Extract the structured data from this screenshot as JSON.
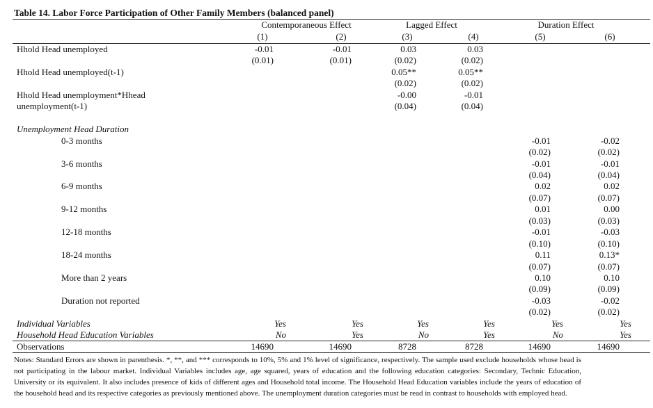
{
  "title": "Table 14. Labor Force Participation of Other Family Members (balanced panel)",
  "headers": {
    "groups": [
      "Contemporaneous Effect",
      "Lagged Effect",
      "Duration Effect"
    ],
    "columns": [
      "(1)",
      "(2)",
      "(3)",
      "(4)",
      "(5)",
      "(6)"
    ]
  },
  "rows": [
    {
      "label": "Hhold Head unemployed",
      "cells": [
        "-0.01",
        "-0.01",
        "0.03",
        "0.03",
        null,
        null
      ]
    },
    {
      "cells": [
        "(0.01)",
        "(0.01)",
        "(0.02)",
        "(0.02)",
        null,
        null
      ]
    },
    {
      "label": "Hhold Head unemployed(t-1)",
      "cells": [
        null,
        null,
        "0.05**",
        "0.05**",
        null,
        null
      ]
    },
    {
      "cells": [
        null,
        null,
        "(0.02)",
        "(0.02)",
        null,
        null
      ]
    },
    {
      "label": "Hhold Head unemployment*Hhead",
      "cells": [
        null,
        null,
        "-0.00",
        "-0.01",
        null,
        null
      ]
    },
    {
      "label": "unemployment(t-1)",
      "cells": [
        null,
        null,
        "(0.04)",
        "(0.04)",
        null,
        null
      ]
    }
  ],
  "duration": {
    "title": "Unemployment Head Duration",
    "rows": [
      {
        "label": "0-3 months",
        "cells": [
          null,
          null,
          null,
          null,
          "-0.01",
          "-0.02"
        ]
      },
      {
        "cells": [
          null,
          null,
          null,
          null,
          "(0.02)",
          "(0.02)"
        ]
      },
      {
        "label": "3-6 months",
        "cells": [
          null,
          null,
          null,
          null,
          "-0.01",
          "-0.01"
        ]
      },
      {
        "cells": [
          null,
          null,
          null,
          null,
          "(0.04)",
          "(0.04)"
        ]
      },
      {
        "label": "6-9 months",
        "cells": [
          null,
          null,
          null,
          null,
          "0.02",
          "0.02"
        ]
      },
      {
        "cells": [
          null,
          null,
          null,
          null,
          "(0.07)",
          "(0.07)"
        ]
      },
      {
        "label": "9-12 months",
        "cells": [
          null,
          null,
          null,
          null,
          "0.01",
          "0.00"
        ]
      },
      {
        "cells": [
          null,
          null,
          null,
          null,
          "(0.03)",
          "(0.03)"
        ]
      },
      {
        "label": "12-18 months",
        "cells": [
          null,
          null,
          null,
          null,
          "-0.01",
          "-0.03"
        ]
      },
      {
        "cells": [
          null,
          null,
          null,
          null,
          "(0.10)",
          "(0.10)"
        ]
      },
      {
        "label": "18-24 months",
        "cells": [
          null,
          null,
          null,
          null,
          "0.11",
          "0.13*"
        ]
      },
      {
        "cells": [
          null,
          null,
          null,
          null,
          "(0.07)",
          "(0.07)"
        ]
      },
      {
        "label": "More than 2 years",
        "cells": [
          null,
          null,
          null,
          null,
          "0.10",
          "0.10"
        ]
      },
      {
        "cells": [
          null,
          null,
          null,
          null,
          "(0.09)",
          "(0.09)"
        ]
      },
      {
        "label": "Duration not reported",
        "cells": [
          null,
          null,
          null,
          null,
          "-0.03",
          "-0.02"
        ]
      },
      {
        "cells": [
          null,
          null,
          null,
          null,
          "(0.02)",
          "(0.02)"
        ]
      }
    ]
  },
  "controls": [
    {
      "label": "Individual Variables",
      "cells": [
        "Yes",
        "Yes",
        "Yes",
        "Yes",
        "Yes",
        "Yes"
      ]
    },
    {
      "label": "Household Head Education Variables",
      "cells": [
        "No",
        "Yes",
        "No",
        "Yes",
        "No",
        "Yes"
      ]
    }
  ],
  "observations": {
    "label": "Observations",
    "cells": [
      "14690",
      "14690",
      "8728",
      "8728",
      "14690",
      "14690"
    ]
  },
  "notes": "Notes: Standard Errors are shown in parenthesis. *, **, and *** corresponds to 10%, 5% and 1% level of significance, respectively. The sample used exclude households whose head is not participating in the labour market. Individual Variables includes age, age squared, years of education and the following education categories: Secondary, Technic Education, University or its equivalent. It also includes presence of kids of different ages and Household total income. The Household Head Education variables include the years of education of the household head and its respective categories as previously mentioned above. The unemployment duration categories must be read in contrast to households with employed head."
}
